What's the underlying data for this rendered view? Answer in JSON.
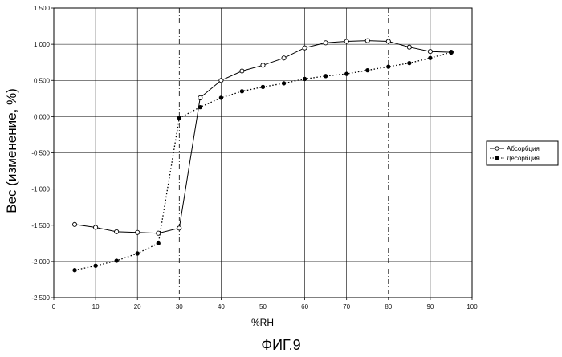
{
  "caption": "ФИГ.9",
  "chart_data": {
    "type": "line",
    "xlabel": "%RH",
    "ylabel": "Вес (изменение, %)",
    "xlim": [
      0,
      100
    ],
    "ylim": [
      -2.5,
      1.5
    ],
    "x_ticks": [
      0,
      10,
      20,
      30,
      40,
      50,
      60,
      70,
      80,
      90,
      100
    ],
    "x_tick_labels": [
      "0",
      "10",
      "20",
      "30",
      "40",
      "50",
      "60",
      "70",
      "80",
      "90",
      "100"
    ],
    "y_ticks": [
      1.5,
      1.0,
      0.5,
      0.0,
      -0.5,
      -1.0,
      -1.5,
      -2.0,
      -2.5
    ],
    "y_tick_labels": [
      "1 500",
      "1 000",
      "0 500",
      "0 000",
      "-0 500",
      "-1 000",
      "-1 500",
      "-2 000",
      "-2 500"
    ],
    "grid": true,
    "legend_position": "right",
    "series": [
      {
        "name": "Абсорбция",
        "line_style": "solid",
        "marker": "open-circle",
        "x": [
          5,
          10,
          15,
          20,
          25,
          30,
          35,
          40,
          45,
          50,
          55,
          60,
          65,
          70,
          75,
          80,
          85,
          90,
          95
        ],
        "y": [
          -1.49,
          -1.53,
          -1.59,
          -1.6,
          -1.61,
          -1.54,
          0.26,
          0.5,
          0.63,
          0.71,
          0.81,
          0.95,
          1.02,
          1.04,
          1.05,
          1.04,
          0.96,
          0.9,
          0.89
        ]
      },
      {
        "name": "Десорбция",
        "line_style": "dotted",
        "marker": "filled-circle",
        "x": [
          5,
          10,
          15,
          20,
          25,
          30,
          35,
          40,
          45,
          50,
          55,
          60,
          65,
          70,
          75,
          80,
          85,
          90,
          95
        ],
        "y": [
          -2.12,
          -2.06,
          -1.99,
          -1.89,
          -1.75,
          -0.02,
          0.13,
          0.26,
          0.35,
          0.41,
          0.46,
          0.52,
          0.56,
          0.59,
          0.64,
          0.69,
          0.74,
          0.81,
          0.89
        ]
      }
    ]
  }
}
